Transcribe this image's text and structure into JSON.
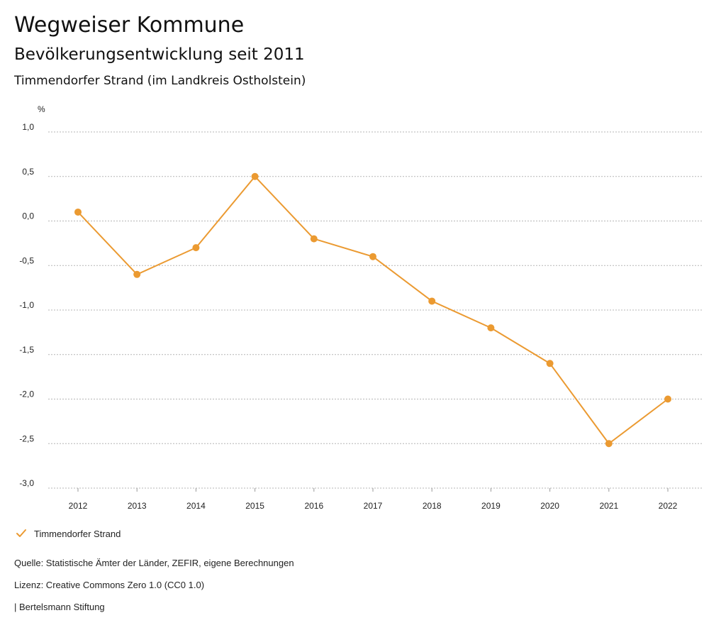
{
  "header": {
    "title": "Wegweiser Kommune",
    "subtitle": "Bevölkerungsentwicklung seit 2011",
    "region": "Timmendorfer Strand (im Landkreis Ostholstein)"
  },
  "chart_data": {
    "type": "line",
    "title": "Bevölkerungsentwicklung seit 2011",
    "subtitle": "Timmendorfer Strand (im Landkreis Ostholstein)",
    "xlabel": "",
    "ylabel": "%",
    "x": [
      "2012",
      "2013",
      "2014",
      "2015",
      "2016",
      "2017",
      "2018",
      "2019",
      "2020",
      "2021",
      "2022"
    ],
    "ylim": [
      -3.0,
      1.0
    ],
    "yticks": [
      1.0,
      0.5,
      0.0,
      -0.5,
      -1.0,
      -1.5,
      -2.0,
      -2.5,
      -3.0
    ],
    "ytick_labels": [
      "1,0",
      "0,5",
      "0,0",
      "-0,5",
      "-1,0",
      "-1,5",
      "-2,0",
      "-2,5",
      "-3,0"
    ],
    "grid": true,
    "legend": "bottom-left",
    "series": [
      {
        "name": "Timmendorfer Strand",
        "color": "#eb9a31",
        "values": [
          0.1,
          -0.6,
          -0.3,
          0.5,
          -0.2,
          -0.4,
          -0.9,
          -1.2,
          -1.6,
          -2.5,
          -2.0
        ]
      }
    ]
  },
  "legend": {
    "label": "Timmendorfer Strand",
    "icon": "check-icon"
  },
  "footer": {
    "source": "Quelle: Statistische Ämter der Länder, ZEFIR, eigene Berechnungen",
    "license": "Lizenz: Creative Commons Zero 1.0 (CC0 1.0)",
    "publisher": "| Bertelsmann Stiftung"
  }
}
